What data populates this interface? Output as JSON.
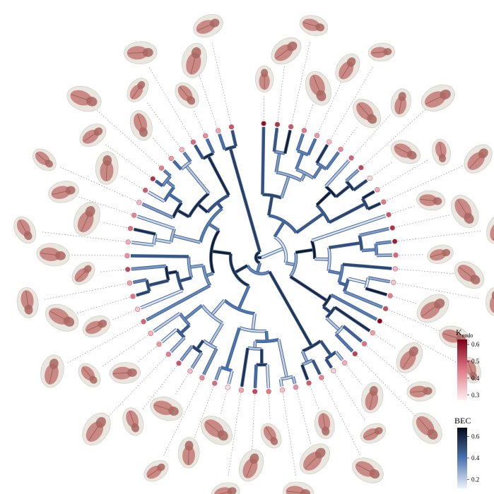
{
  "figure": {
    "n_taxa": 60,
    "legend_kendo": {
      "title_main": "K",
      "title_sub": "endo",
      "ticks": [
        "0.6",
        "0.5",
        "0.4",
        "0.3"
      ],
      "tick_values": [
        0.6,
        0.5,
        0.4,
        0.3
      ],
      "range": [
        0.27,
        0.63
      ],
      "colors": [
        "#fdf0f2",
        "#e07987",
        "#7a0017"
      ]
    },
    "legend_bec": {
      "title": "BEC",
      "ticks": [
        "0.6",
        "0.4",
        "0.2"
      ],
      "tick_values": [
        0.6,
        0.4,
        0.2
      ],
      "range": [
        0.12,
        0.68
      ],
      "colors": [
        "#eef3fb",
        "#4a72b0",
        "#050a18"
      ]
    },
    "colors": {
      "skull": "#e9e7df",
      "brain": "#c98a85",
      "brain_dark": "#a9655f",
      "connector": "#9a9a9a"
    },
    "tip_kendo": [
      0.6,
      0.55,
      0.5,
      0.45,
      0.4,
      0.35,
      0.42,
      0.48,
      0.52,
      0.3,
      0.38,
      0.45,
      0.5,
      0.55,
      0.58,
      0.47,
      0.36,
      0.33,
      0.44,
      0.51,
      0.62,
      0.39,
      0.46,
      0.53,
      0.37,
      0.31,
      0.43,
      0.49,
      0.41,
      0.34,
      0.45,
      0.52,
      0.38,
      0.29,
      0.47,
      0.42,
      0.35,
      0.5,
      0.44,
      0.4,
      0.36,
      0.48,
      0.33,
      0.45,
      0.39,
      0.52,
      0.41,
      0.37,
      0.46,
      0.43,
      0.35,
      0.49,
      0.55,
      0.44,
      0.4,
      0.36,
      0.47,
      0.42,
      0.38,
      0.5
    ]
  }
}
